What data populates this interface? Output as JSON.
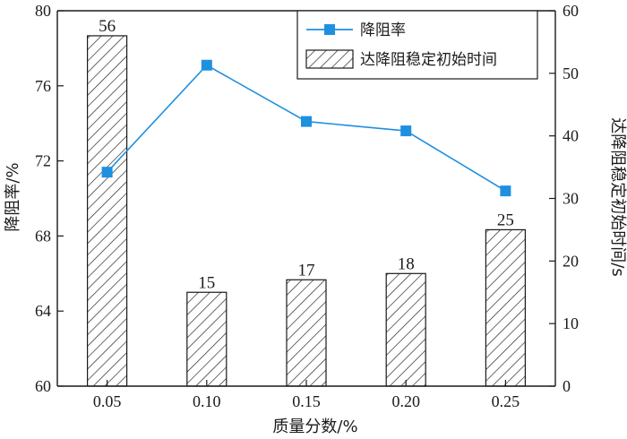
{
  "chart_data": {
    "type": "bar+line",
    "x": [
      "0.05",
      "0.10",
      "0.15",
      "0.20",
      "0.25"
    ],
    "xlabel": "质量分数/%",
    "y_left": {
      "label": "降阻率/%",
      "lim": [
        60,
        80
      ],
      "ticks": [
        60,
        64,
        68,
        72,
        76,
        80
      ]
    },
    "y_right": {
      "label": "达降阻稳定初始时间/s",
      "lim": [
        0,
        60
      ],
      "ticks": [
        0,
        10,
        20,
        30,
        40,
        50,
        60
      ]
    },
    "series": [
      {
        "name": "降阻率",
        "type": "line",
        "axis": "left",
        "color": "#1e90e0",
        "marker": "square",
        "values": [
          71.4,
          77.1,
          74.1,
          73.6,
          70.4
        ]
      },
      {
        "name": "达降阻稳定初始时间",
        "type": "bar",
        "axis": "right",
        "pattern": "diagonal-hatch",
        "values": [
          56,
          15,
          17,
          18,
          25
        ],
        "labels": [
          "56",
          "15",
          "17",
          "18",
          "25"
        ]
      }
    ],
    "legend": {
      "position": "top-right"
    },
    "grid": false
  }
}
